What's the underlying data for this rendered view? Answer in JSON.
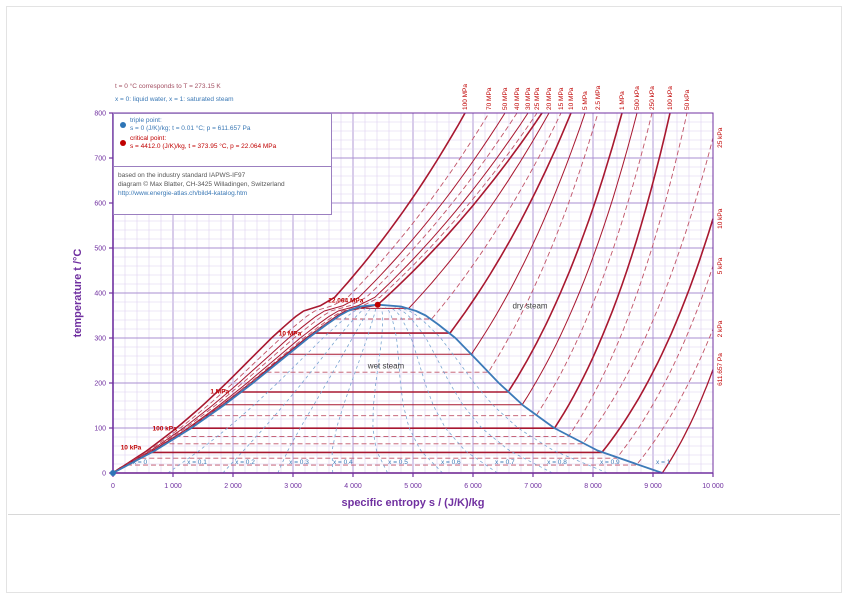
{
  "header": {
    "line1": "t = 0 °C corresponds to T = 273.15 K",
    "line2": "x = 0: liquid water,  x = 1: saturated steam"
  },
  "legend": {
    "triple_point": {
      "name": "triple point:",
      "detail": "s = 0 (J/K)/kg;  t = 0.01 °C;  p = 611.657 Pa"
    },
    "critical_point": {
      "name": "critical point:",
      "detail": "s = 4412.0 (J/K)/kg,  t = 373.95 °C,  p = 22.064 MPa"
    }
  },
  "source": {
    "line1": "based on the industry standard IAPWS-IF97",
    "line2": "diagram © Max Blatter, CH-3425 Willadingen, Switzerland",
    "line3": "http://www.energie-atlas.ch/bild4-katalog.htm"
  },
  "axes": {
    "x_label": "specific entropy  s / (J/K)/kg",
    "y_label": "temperature  t /°C",
    "x_tick_values": [
      0,
      1000,
      2000,
      3000,
      4000,
      5000,
      6000,
      7000,
      8000,
      9000,
      10000
    ],
    "x_tick_labels": [
      "0",
      "1 000",
      "2 000",
      "3 000",
      "4 000",
      "5 000",
      "6 000",
      "7 000",
      "8 000",
      "9 000",
      "10 000"
    ],
    "y_tick_values": [
      0,
      100,
      200,
      300,
      400,
      500,
      600,
      700,
      800
    ],
    "y_tick_labels": [
      "0",
      "100",
      "200",
      "300",
      "400",
      "500",
      "600",
      "700",
      "800"
    ]
  },
  "colors": {
    "axis": "#7030a0",
    "grid_minor": "#ddd0f0",
    "grid_major": "#a98fd0",
    "isobar_solid": "#a81830",
    "isobar_dashed": "#c05468",
    "dome": "#3c7ab8",
    "quality": "#7aa6d2",
    "label_red": "#c00000",
    "label_blue": "#3a78b5",
    "label_dark": "#404040"
  },
  "chart_data": {
    "type": "line",
    "x_range": [
      0,
      10000
    ],
    "y_range": [
      0,
      800
    ],
    "grid": "on",
    "saturation_dome": {
      "t": [
        0,
        50,
        100,
        150,
        200,
        250,
        300,
        330,
        350,
        360,
        370,
        373.95
      ],
      "s_liquid": [
        0,
        703,
        1307,
        1842,
        2331,
        2793,
        3255,
        3561,
        3778,
        3915,
        4114,
        4412
      ],
      "s_vapor": [
        9155,
        8075,
        7354,
        6837,
        6430,
        6072,
        5706,
        5422,
        5211,
        5053,
        4800,
        4412
      ]
    },
    "triple_point": {
      "s": 0,
      "t": 0.01,
      "p": "611.657 Pa"
    },
    "critical_point": {
      "s": 4412,
      "t": 373.95,
      "p": "22.064 MPa"
    },
    "quality_lines": {
      "x_values": [
        0.1,
        0.2,
        0.3,
        0.4,
        0.5,
        0.6,
        0.7,
        0.8,
        0.9
      ]
    },
    "quality_labels": [
      {
        "text": "x = 0",
        "s": 450
      },
      {
        "text": "x = 0.1",
        "s": 1400
      },
      {
        "text": "x = 0.2",
        "s": 2200
      },
      {
        "text": "x = 0.3",
        "s": 3100
      },
      {
        "text": "x = 0.4",
        "s": 3830
      },
      {
        "text": "x = 0.5",
        "s": 4750
      },
      {
        "text": "x = 0.6",
        "s": 5630
      },
      {
        "text": "x = 0.7",
        "s": 6530
      },
      {
        "text": "x = 0.8",
        "s": 7400
      },
      {
        "text": "x = 0.9",
        "s": 8280
      },
      {
        "text": "x = 1",
        "s": 9170
      }
    ],
    "isobars": [
      {
        "label": "22.064 MPa",
        "style": "solid",
        "weight": 1.6,
        "t_sat": 373.95,
        "s_f": 4412,
        "s_g": 4412,
        "end": {
          "at": "top",
          "s": 7150
        },
        "top_label": false
      },
      {
        "label": "20 MPa",
        "style": "solid",
        "weight": 1.0,
        "t_sat": 365.7,
        "s_f": 4015,
        "s_g": 4928,
        "end": {
          "at": "top",
          "s": 7267
        },
        "top_label": true
      },
      {
        "label": "15 MPa",
        "style": "dashed",
        "weight": 0.9,
        "t_sat": 342.2,
        "s_f": 3685,
        "s_g": 5310,
        "end": {
          "at": "top",
          "s": 7467
        },
        "top_label": true
      },
      {
        "label": "10 MPa",
        "style": "solid",
        "weight": 1.6,
        "t_sat": 311.0,
        "s_f": 3360,
        "s_g": 5616,
        "end": {
          "at": "top",
          "s": 7633
        },
        "top_label": true
      },
      {
        "label": "5 MPa",
        "style": "solid",
        "weight": 1.0,
        "t_sat": 263.9,
        "s_f": 2921,
        "s_g": 5973,
        "end": {
          "at": "top",
          "s": 7867
        },
        "top_label": true
      },
      {
        "label": "2.5 MPa",
        "style": "dashed",
        "weight": 0.9,
        "t_sat": 224.0,
        "s_f": 2554,
        "s_g": 6256,
        "end": {
          "at": "top",
          "s": 8083
        },
        "top_label": true
      },
      {
        "label": "1 MPa",
        "style": "solid",
        "weight": 1.6,
        "t_sat": 179.9,
        "s_f": 2138,
        "s_g": 6585,
        "end": {
          "at": "top",
          "s": 8483
        },
        "top_label": true
      },
      {
        "label": "500 kPa",
        "style": "solid",
        "weight": 1.0,
        "t_sat": 151.8,
        "s_f": 1860,
        "s_g": 6820,
        "end": {
          "at": "top",
          "s": 8733
        },
        "top_label": true
      },
      {
        "label": "250 kPa",
        "style": "dashed",
        "weight": 0.9,
        "t_sat": 127.4,
        "s_f": 1607,
        "s_g": 7052,
        "end": {
          "at": "top",
          "s": 8983
        },
        "top_label": true
      },
      {
        "label": "100 kPa",
        "style": "solid",
        "weight": 1.6,
        "t_sat": 99.6,
        "s_f": 1303,
        "s_g": 7359,
        "end": {
          "at": "top",
          "s": 9283
        },
        "top_label": true
      },
      {
        "label": "50 kPa",
        "style": "dashed",
        "weight": 0.9,
        "t_sat": 81.3,
        "s_f": 1091,
        "s_g": 7593,
        "end": {
          "at": "top",
          "s": 9567
        },
        "top_label": true
      },
      {
        "label": "25 kPa",
        "style": "dashed",
        "weight": 0.9,
        "t_sat": 65.0,
        "s_f": 893,
        "s_g": 7830,
        "end": {
          "at": "right",
          "t": 745
        },
        "top_label": false
      },
      {
        "label": "10 kPa",
        "style": "solid",
        "weight": 1.6,
        "t_sat": 45.8,
        "s_f": 649,
        "s_g": 8149,
        "end": {
          "at": "right",
          "t": 565
        },
        "top_label": false
      },
      {
        "label": "5 kPa",
        "style": "dashed",
        "weight": 0.9,
        "t_sat": 32.9,
        "s_f": 476,
        "s_g": 8393,
        "end": {
          "at": "right",
          "t": 460
        },
        "top_label": false
      },
      {
        "label": "2 kPa",
        "style": "dashed",
        "weight": 0.9,
        "t_sat": 17.5,
        "s_f": 261,
        "s_g": 8722,
        "end": {
          "at": "right",
          "t": 320
        },
        "top_label": false
      },
      {
        "label": "611.657 Pa",
        "style": "solid",
        "weight": 1.3,
        "t_sat": 0.01,
        "s_f": 0,
        "s_g": 9155,
        "end": {
          "at": "right",
          "t": 230
        },
        "top_label": false
      }
    ],
    "supercritical_isobars": [
      {
        "label": "100 MPa",
        "style": "solid",
        "weight": 1.6,
        "knee_s": 3580,
        "end_s": 5867
      },
      {
        "label": "70 MPa",
        "style": "dashed",
        "weight": 0.9,
        "knee_s": 3790,
        "end_s": 6267
      },
      {
        "label": "50 MPa",
        "style": "solid",
        "weight": 1.0,
        "knee_s": 3970,
        "end_s": 6533
      },
      {
        "label": "40 MPa",
        "style": "dashed",
        "weight": 0.9,
        "knee_s": 4090,
        "end_s": 6733
      },
      {
        "label": "30 MPa",
        "style": "solid",
        "weight": 1.0,
        "knee_s": 4230,
        "end_s": 6917
      },
      {
        "label": "25 MPa",
        "style": "dashed",
        "weight": 0.9,
        "knee_s": 4310,
        "end_s": 7067
      }
    ],
    "plot_labels": [
      {
        "text": "10 kPa",
        "s": 300,
        "t": 52,
        "color": "red"
      },
      {
        "text": "100 kPa",
        "s": 860,
        "t": 95,
        "color": "red"
      },
      {
        "text": "1 MPa",
        "s": 1780,
        "t": 177,
        "color": "red"
      },
      {
        "text": "10 MPa",
        "s": 2950,
        "t": 306,
        "color": "red"
      },
      {
        "text": "22.064 MPa",
        "s": 3880,
        "t": 379,
        "color": "red"
      },
      {
        "text": "wet steam",
        "s": 4550,
        "t": 232,
        "color": "dark"
      },
      {
        "text": "dry steam",
        "s": 6950,
        "t": 366,
        "color": "dark"
      }
    ]
  }
}
